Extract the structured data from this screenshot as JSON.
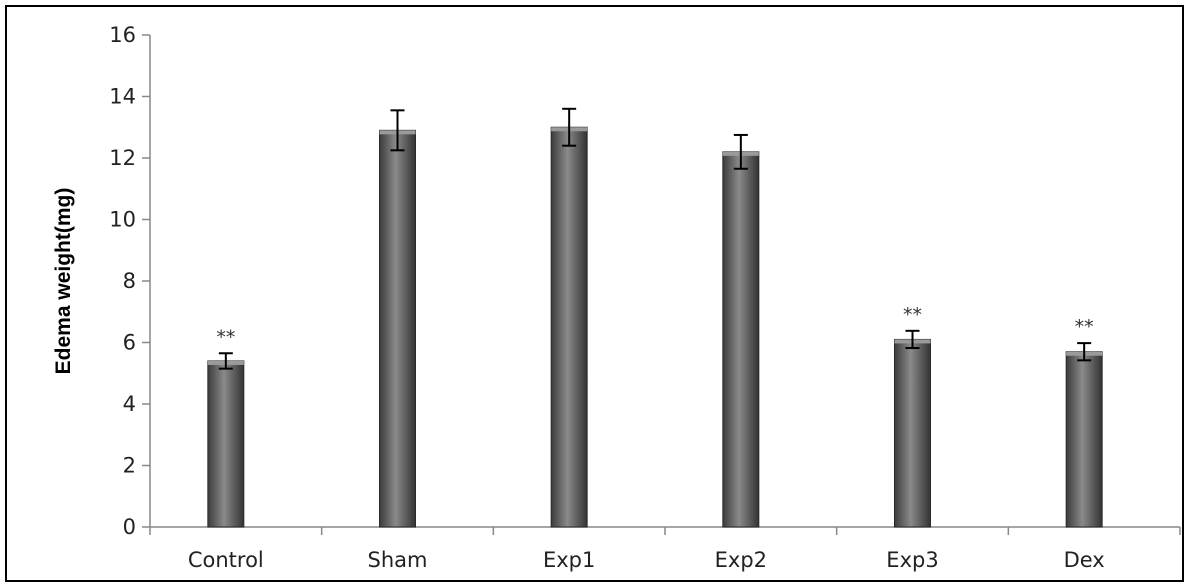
{
  "chart_data": {
    "type": "bar",
    "title": "",
    "xlabel": "",
    "ylabel": "Edema weight(mg)",
    "categories": [
      "Control",
      "Sham",
      "Exp1",
      "Exp2",
      "Exp3",
      "Dex"
    ],
    "values": [
      5.4,
      12.9,
      13.0,
      12.2,
      6.1,
      5.7
    ],
    "errors": [
      0.25,
      0.65,
      0.6,
      0.55,
      0.28,
      0.28
    ],
    "annotations": [
      "**",
      "",
      "",
      "",
      "**",
      "**"
    ],
    "ylim": [
      0,
      16
    ],
    "yticks": [
      "0",
      "2",
      "4",
      "6",
      "8",
      "10",
      "12",
      "14",
      "16"
    ],
    "grid": false,
    "legend": "none",
    "bar_color": "#555555",
    "bar_highlight": "#8a8a8a"
  }
}
